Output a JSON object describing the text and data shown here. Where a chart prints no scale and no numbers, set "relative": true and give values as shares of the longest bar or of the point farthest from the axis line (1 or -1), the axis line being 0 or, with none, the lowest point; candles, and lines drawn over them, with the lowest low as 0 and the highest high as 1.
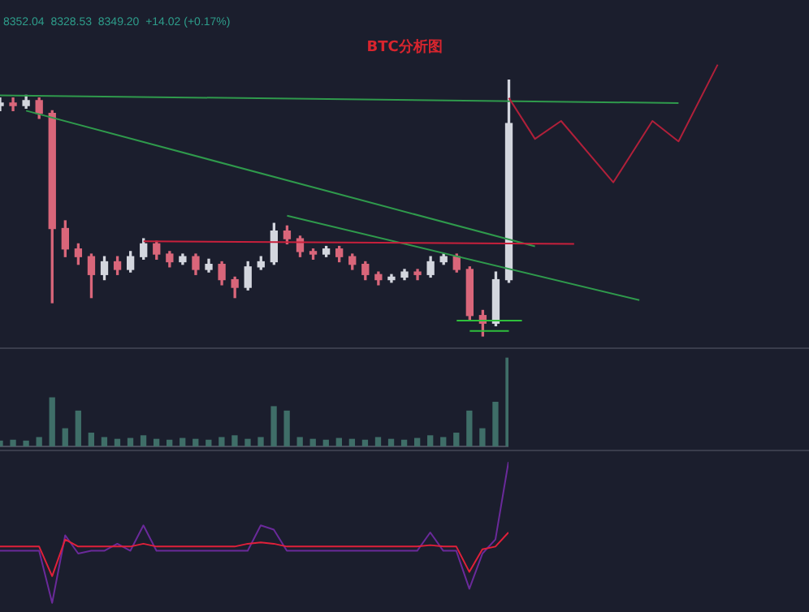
{
  "chart_data": [
    {
      "type": "candlestick",
      "title": "BTC分析图",
      "annotations": [
        "8352.04  8328.53  8349.20  +14.02 (+0.17%)"
      ],
      "relative": true,
      "legend": false,
      "marker": "none",
      "line_style": "solid",
      "colors": [
        "#d3d6de",
        "#d9667a",
        "#d3d6de",
        "#d9667a",
        "#d9667a",
        "#d9667a",
        "#d9667a",
        "#d9667a",
        "#d3d6de",
        "#d9667a",
        "#d3d6de",
        "#d3d6de",
        "#d9667a",
        "#d9667a",
        "#d3d6de",
        "#d9667a",
        "#d3d6de",
        "#d9667a",
        "#d9667a",
        "#d3d6de",
        "#d3d6de",
        "#d3d6de",
        "#d9667a",
        "#d9667a",
        "#d9667a",
        "#d3d6de",
        "#d9667a",
        "#d9667a",
        "#d9667a",
        "#d9667a",
        "#d3d6de",
        "#d3d6de",
        "#d9667a",
        "#d3d6de",
        "#d3d6de",
        "#d9667a",
        "#d9667a",
        "#d9667a",
        "#d3d6de",
        "#d3d6de",
        null,
        null,
        null,
        null,
        null,
        null,
        null,
        null,
        null,
        null,
        null,
        null,
        null,
        null,
        null,
        null,
        null,
        null,
        null,
        null,
        null,
        null,
        null
      ],
      "categories": [
        null,
        null,
        null,
        null,
        null,
        null,
        null,
        null,
        null,
        null,
        null,
        null,
        null,
        null,
        null,
        null,
        null,
        null,
        null,
        null,
        null,
        null,
        null,
        null,
        null,
        null,
        null,
        null,
        null,
        null,
        null,
        null,
        null,
        null,
        null,
        null,
        null,
        null,
        null,
        null,
        null,
        null,
        null,
        null,
        null,
        null,
        null,
        null,
        null,
        null,
        null,
        null,
        null,
        null,
        null,
        null,
        null,
        null,
        null,
        null,
        null,
        null,
        null
      ],
      "ohlc": [
        [
          0.9,
          0.93,
          0.88,
          0.91
        ],
        [
          0.91,
          0.93,
          0.88,
          0.9
        ],
        [
          0.9,
          0.94,
          0.89,
          0.92
        ],
        [
          0.92,
          0.93,
          0.85,
          0.87
        ],
        [
          0.87,
          0.88,
          0.13,
          0.42
        ],
        [
          0.42,
          0.45,
          0.31,
          0.34
        ],
        [
          0.34,
          0.36,
          0.28,
          0.31
        ],
        [
          0.31,
          0.32,
          0.15,
          0.24
        ],
        [
          0.24,
          0.31,
          0.22,
          0.29
        ],
        [
          0.29,
          0.31,
          0.24,
          0.26
        ],
        [
          0.26,
          0.33,
          0.25,
          0.31
        ],
        [
          0.31,
          0.38,
          0.3,
          0.36
        ],
        [
          0.36,
          0.37,
          0.3,
          0.32
        ],
        [
          0.32,
          0.33,
          0.27,
          0.29
        ],
        [
          0.29,
          0.32,
          0.28,
          0.31
        ],
        [
          0.31,
          0.32,
          0.24,
          0.26
        ],
        [
          0.26,
          0.3,
          0.25,
          0.28
        ],
        [
          0.28,
          0.29,
          0.2,
          0.22
        ],
        [
          0.22,
          0.23,
          0.15,
          0.19
        ],
        [
          0.19,
          0.29,
          0.18,
          0.27
        ],
        [
          0.27,
          0.31,
          0.26,
          0.29
        ],
        [
          0.29,
          0.44,
          0.28,
          0.41
        ],
        [
          0.41,
          0.43,
          0.36,
          0.38
        ],
        [
          0.38,
          0.39,
          0.31,
          0.33
        ],
        [
          0.33,
          0.34,
          0.3,
          0.32
        ],
        [
          0.32,
          0.35,
          0.31,
          0.34
        ],
        [
          0.34,
          0.35,
          0.29,
          0.31
        ],
        [
          0.31,
          0.32,
          0.26,
          0.28
        ],
        [
          0.28,
          0.29,
          0.22,
          0.24
        ],
        [
          0.24,
          0.25,
          0.2,
          0.22
        ],
        [
          0.22,
          0.24,
          0.21,
          0.23
        ],
        [
          0.23,
          0.26,
          0.22,
          0.25
        ],
        [
          0.25,
          0.26,
          0.22,
          0.24
        ],
        [
          0.24,
          0.31,
          0.23,
          0.29
        ],
        [
          0.29,
          0.32,
          0.28,
          0.31
        ],
        [
          0.31,
          0.32,
          0.25,
          0.26
        ],
        [
          0.26,
          0.27,
          0.06,
          0.08
        ],
        [
          0.08,
          0.1,
          0,
          0.05
        ],
        [
          0.05,
          0.25,
          0.04,
          0.22
        ],
        [
          0.22,
          1,
          0.21,
          0.83
        ],
        null,
        null,
        null,
        null,
        null,
        null,
        null,
        null,
        null,
        null,
        null,
        null,
        null,
        null,
        null,
        null,
        null,
        null,
        null,
        null,
        null,
        null,
        null
      ],
      "series": [
        {
          "type": "line",
          "color": "#2f9a4c",
          "values": [
            0.94,
            null,
            null,
            null,
            null,
            null,
            null,
            null,
            null,
            null,
            null,
            null,
            null,
            null,
            null,
            null,
            null,
            null,
            null,
            null,
            null,
            null,
            null,
            null,
            null,
            null,
            null,
            null,
            null,
            null,
            null,
            null,
            null,
            null,
            null,
            null,
            null,
            null,
            null,
            null,
            null,
            null,
            null,
            null,
            null,
            null,
            null,
            null,
            null,
            null,
            null,
            null,
            0.91,
            null,
            null,
            null,
            null,
            null,
            null,
            null,
            null,
            null,
            null
          ]
        },
        {
          "type": "line",
          "color": "#2f9a4c",
          "values": [
            null,
            null,
            0.88,
            null,
            null,
            null,
            null,
            null,
            null,
            null,
            null,
            null,
            null,
            null,
            null,
            null,
            null,
            null,
            null,
            null,
            null,
            null,
            null,
            null,
            null,
            null,
            null,
            null,
            null,
            null,
            null,
            null,
            null,
            null,
            null,
            null,
            null,
            null,
            null,
            null,
            null,
            0.35,
            null,
            null,
            null,
            null,
            null,
            null,
            null,
            null,
            null,
            null,
            null,
            null,
            null,
            null,
            null,
            null,
            null,
            null,
            null,
            null,
            null
          ]
        },
        {
          "type": "line",
          "color": "#2f9a4c",
          "values": [
            null,
            null,
            null,
            null,
            null,
            null,
            null,
            null,
            null,
            null,
            null,
            null,
            null,
            null,
            null,
            null,
            null,
            null,
            null,
            null,
            null,
            null,
            0.47,
            null,
            null,
            null,
            null,
            null,
            null,
            null,
            null,
            null,
            null,
            null,
            null,
            null,
            null,
            null,
            null,
            null,
            null,
            null,
            null,
            null,
            null,
            null,
            null,
            null,
            null,
            0.14,
            null,
            null,
            null,
            null,
            null,
            null,
            null,
            null,
            null,
            null,
            null,
            null,
            null
          ]
        },
        {
          "type": "line",
          "color": "#c8203c",
          "values": [
            null,
            null,
            null,
            null,
            null,
            null,
            null,
            null,
            null,
            null,
            null,
            0.37,
            null,
            null,
            null,
            null,
            null,
            null,
            null,
            null,
            null,
            null,
            null,
            null,
            null,
            null,
            null,
            null,
            null,
            null,
            null,
            null,
            null,
            null,
            null,
            null,
            null,
            null,
            null,
            null,
            null,
            null,
            null,
            null,
            0.36,
            null,
            null,
            null,
            null,
            null,
            null,
            null,
            null,
            null,
            null,
            null,
            null,
            null,
            null,
            null,
            null,
            null,
            null
          ]
        },
        {
          "type": "line",
          "color": "#2fbf3c",
          "values": [
            null,
            null,
            null,
            null,
            null,
            null,
            null,
            null,
            null,
            null,
            null,
            null,
            null,
            null,
            null,
            null,
            null,
            null,
            null,
            null,
            null,
            null,
            null,
            null,
            null,
            null,
            null,
            null,
            null,
            null,
            null,
            null,
            null,
            null,
            null,
            0.06,
            null,
            null,
            null,
            null,
            0.06,
            null,
            null,
            null,
            null,
            null,
            null,
            null,
            null,
            null,
            null,
            null,
            null,
            null,
            null,
            null,
            null,
            null,
            null,
            null,
            null,
            null,
            null
          ]
        },
        {
          "type": "line",
          "color": "#2fbf3c",
          "values": [
            null,
            null,
            null,
            null,
            null,
            null,
            null,
            null,
            null,
            null,
            null,
            null,
            null,
            null,
            null,
            null,
            null,
            null,
            null,
            null,
            null,
            null,
            null,
            null,
            null,
            null,
            null,
            null,
            null,
            null,
            null,
            null,
            null,
            null,
            null,
            null,
            0.02,
            null,
            null,
            0.02,
            null,
            null,
            null,
            null,
            null,
            null,
            null,
            null,
            null,
            null,
            null,
            null,
            null,
            null,
            null,
            null,
            null,
            null,
            null,
            null,
            null,
            null,
            null
          ]
        },
        {
          "type": "line",
          "color": "#b0203a",
          "values": [
            null,
            null,
            null,
            null,
            null,
            null,
            null,
            null,
            null,
            null,
            null,
            null,
            null,
            null,
            null,
            null,
            null,
            null,
            null,
            null,
            null,
            null,
            null,
            null,
            null,
            null,
            null,
            null,
            null,
            null,
            null,
            null,
            null,
            null,
            null,
            null,
            null,
            null,
            null,
            0.93,
            null,
            0.77,
            null,
            0.84,
            null,
            null,
            null,
            0.6,
            null,
            null,
            0.84,
            null,
            0.76,
            null,
            null,
            1.06,
            null,
            null,
            null,
            null,
            null,
            null,
            null
          ]
        }
      ]
    },
    {
      "type": "bar",
      "relative": true,
      "legend": false,
      "color": "#3f6e68",
      "categories": [
        null,
        null,
        null,
        null,
        null,
        null,
        null,
        null,
        null,
        null,
        null,
        null,
        null,
        null,
        null,
        null,
        null,
        null,
        null,
        null,
        null,
        null,
        null,
        null,
        null,
        null,
        null,
        null,
        null,
        null,
        null,
        null,
        null,
        null,
        null,
        null,
        null,
        null,
        null,
        null
      ],
      "values": [
        0.06,
        0.07,
        0.06,
        0.1,
        0.55,
        0.2,
        0.4,
        0.15,
        0.1,
        0.08,
        0.09,
        0.12,
        0.08,
        0.07,
        0.09,
        0.08,
        0.07,
        0.1,
        0.12,
        0.08,
        0.1,
        0.45,
        0.4,
        0.1,
        0.08,
        0.07,
        0.09,
        0.08,
        0.07,
        0.1,
        0.08,
        0.07,
        0.09,
        0.12,
        0.1,
        0.15,
        0.4,
        0.2,
        0.5,
        1
      ]
    },
    {
      "type": "line",
      "relative": true,
      "legend": false,
      "marker": "none",
      "line_style": "solid",
      "categories": [
        null,
        null,
        null,
        null,
        null,
        null,
        null,
        null,
        null,
        null,
        null,
        null,
        null,
        null,
        null,
        null,
        null,
        null,
        null,
        null,
        null,
        null,
        null,
        null,
        null,
        null,
        null,
        null,
        null,
        null,
        null,
        null,
        null,
        null,
        null,
        null,
        null,
        null,
        null,
        null
      ],
      "series": [
        {
          "color": "#6a2a9a",
          "values": [
            0.37,
            0.37,
            0.37,
            0.37,
            0,
            0.48,
            0.35,
            0.37,
            0.37,
            0.42,
            0.37,
            0.55,
            0.37,
            0.37,
            0.37,
            0.37,
            0.37,
            0.37,
            0.37,
            0.37,
            0.55,
            0.52,
            0.37,
            0.37,
            0.37,
            0.37,
            0.37,
            0.37,
            0.37,
            0.37,
            0.37,
            0.37,
            0.37,
            0.5,
            0.37,
            0.37,
            0.1,
            0.35,
            0.45,
            1
          ]
        },
        {
          "color": "#e0203a",
          "values": [
            0.4,
            0.4,
            0.4,
            0.4,
            0.19,
            0.45,
            0.4,
            0.4,
            0.4,
            0.4,
            0.4,
            0.42,
            0.4,
            0.4,
            0.4,
            0.4,
            0.4,
            0.4,
            0.4,
            0.42,
            0.43,
            0.42,
            0.4,
            0.4,
            0.4,
            0.4,
            0.4,
            0.4,
            0.4,
            0.4,
            0.4,
            0.4,
            0.4,
            0.41,
            0.4,
            0.4,
            0.22,
            0.38,
            0.4,
            0.5
          ]
        }
      ]
    }
  ]
}
